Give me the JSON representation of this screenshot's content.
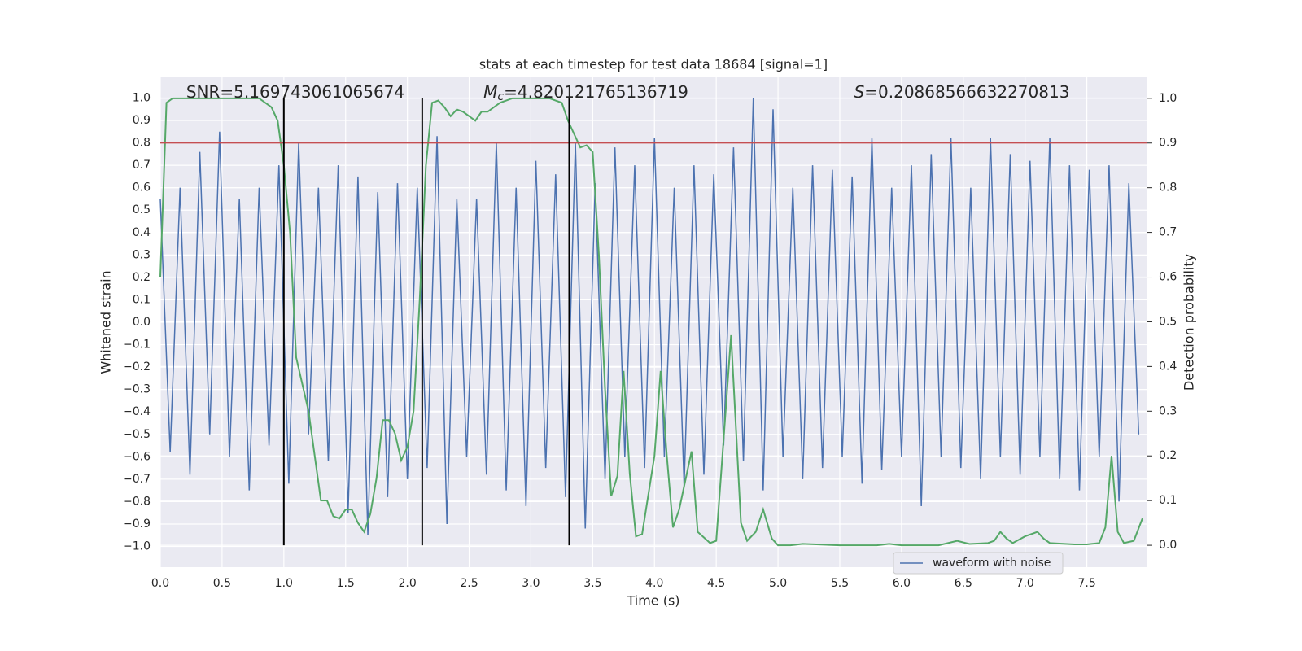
{
  "chart_data": {
    "type": "line",
    "title": "stats at each timestep for test data 18684 [signal=1]",
    "xlabel": "Time (s)",
    "ylabel": "Whitened strain",
    "y2label": "Detection probability",
    "annotations": [
      {
        "text": "SNR=5.169743061065674"
      },
      {
        "symbol": "M",
        "subscript": "c",
        "text": "=4.820121765136719"
      },
      {
        "symbol": "S",
        "text": "=0.20868566632270813"
      }
    ],
    "xlim": [
      0,
      7.99
    ],
    "ylim": [
      -1.0925,
      1.0925
    ],
    "y2lim": [
      -0.049,
      1.047
    ],
    "xticks": [
      {
        "value": 0,
        "label": "0.0"
      },
      {
        "value": 0.5,
        "label": "0.5"
      },
      {
        "value": 1,
        "label": "1.0"
      },
      {
        "value": 1.5,
        "label": "1.5"
      },
      {
        "value": 2,
        "label": "2.0"
      },
      {
        "value": 2.5,
        "label": "2.5"
      },
      {
        "value": 3,
        "label": "3.0"
      },
      {
        "value": 3.5,
        "label": "3.5"
      },
      {
        "value": 4,
        "label": "4.0"
      },
      {
        "value": 4.5,
        "label": "4.5"
      },
      {
        "value": 5,
        "label": "5.0"
      },
      {
        "value": 5.5,
        "label": "5.5"
      },
      {
        "value": 6,
        "label": "6.0"
      },
      {
        "value": 6.5,
        "label": "6.5"
      },
      {
        "value": 7,
        "label": "7.0"
      },
      {
        "value": 7.5,
        "label": "7.5"
      }
    ],
    "yticks": [
      {
        "value": -1,
        "label": "−1.0"
      },
      {
        "value": -0.9,
        "label": "−0.9"
      },
      {
        "value": -0.8,
        "label": "−0.8"
      },
      {
        "value": -0.7,
        "label": "−0.7"
      },
      {
        "value": -0.6,
        "label": "−0.6"
      },
      {
        "value": -0.5,
        "label": "−0.5"
      },
      {
        "value": -0.4,
        "label": "−0.4"
      },
      {
        "value": -0.3,
        "label": "−0.3"
      },
      {
        "value": -0.2,
        "label": "−0.2"
      },
      {
        "value": -0.1,
        "label": "−0.1"
      },
      {
        "value": 0,
        "label": "0.0"
      },
      {
        "value": 0.1,
        "label": "0.1"
      },
      {
        "value": 0.2,
        "label": "0.2"
      },
      {
        "value": 0.3,
        "label": "0.3"
      },
      {
        "value": 0.4,
        "label": "0.4"
      },
      {
        "value": 0.5,
        "label": "0.5"
      },
      {
        "value": 0.6,
        "label": "0.6"
      },
      {
        "value": 0.7,
        "label": "0.7"
      },
      {
        "value": 0.8,
        "label": "0.8"
      },
      {
        "value": 0.9,
        "label": "0.9"
      },
      {
        "value": 1,
        "label": "1.0"
      }
    ],
    "y2ticks": [
      {
        "value": 0,
        "label": "0.0"
      },
      {
        "value": 0.1,
        "label": "0.1"
      },
      {
        "value": 0.2,
        "label": "0.2"
      },
      {
        "value": 0.3,
        "label": "0.3"
      },
      {
        "value": 0.4,
        "label": "0.4"
      },
      {
        "value": 0.5,
        "label": "0.5"
      },
      {
        "value": 0.6,
        "label": "0.6"
      },
      {
        "value": 0.7,
        "label": "0.7"
      },
      {
        "value": 0.8,
        "label": "0.8"
      },
      {
        "value": 0.9,
        "label": "0.9"
      },
      {
        "value": 1,
        "label": "1.0"
      }
    ],
    "grid": true,
    "legend": "lower right",
    "threshold": 0.8,
    "threshold_color": "#c44e52",
    "markers": [
      1.0,
      2.12,
      3.31
    ],
    "marker_color": "#000000",
    "series": [
      {
        "name": "waveform with noise",
        "color": "#4c72b0",
        "x": [
          0,
          0.08,
          0.16,
          0.24,
          0.32,
          0.4,
          0.48,
          0.56,
          0.64,
          0.72,
          0.8,
          0.88,
          0.96,
          1.04,
          1.12,
          1.2,
          1.28,
          1.36,
          1.44,
          1.52,
          1.6,
          1.68,
          1.76,
          1.84,
          1.92,
          2.0,
          2.08,
          2.16,
          2.24,
          2.32,
          2.4,
          2.48,
          2.56,
          2.64,
          2.72,
          2.8,
          2.88,
          2.96,
          3.04,
          3.12,
          3.2,
          3.28,
          3.36,
          3.44,
          3.52,
          3.6,
          3.68,
          3.76,
          3.84,
          3.92,
          4.0,
          4.08,
          4.16,
          4.24,
          4.32,
          4.4,
          4.48,
          4.56,
          4.64,
          4.72,
          4.8,
          4.88,
          4.96,
          5.04,
          5.12,
          5.2,
          5.28,
          5.36,
          5.44,
          5.52,
          5.6,
          5.68,
          5.76,
          5.84,
          5.92,
          6.0,
          6.08,
          6.16,
          6.24,
          6.32,
          6.4,
          6.48,
          6.56,
          6.64,
          6.72,
          6.8,
          6.88,
          6.96,
          7.04,
          7.12,
          7.2,
          7.28,
          7.36,
          7.44,
          7.52,
          7.6,
          7.68,
          7.76,
          7.84,
          7.92
        ],
        "values": [
          0.55,
          -0.58,
          0.6,
          -0.68,
          0.76,
          -0.5,
          0.85,
          -0.6,
          0.55,
          -0.75,
          0.6,
          -0.55,
          0.7,
          -0.72,
          0.8,
          -0.5,
          0.6,
          -0.62,
          0.7,
          -0.85,
          0.65,
          -0.95,
          0.58,
          -0.78,
          0.62,
          -0.7,
          0.6,
          -0.65,
          0.83,
          -0.9,
          0.55,
          -0.6,
          0.55,
          -0.68,
          0.8,
          -0.75,
          0.6,
          -0.82,
          0.72,
          -0.65,
          0.66,
          -0.78,
          0.8,
          -0.92,
          0.62,
          -0.7,
          0.78,
          -0.6,
          0.7,
          -0.65,
          0.82,
          -0.6,
          0.6,
          -0.73,
          0.7,
          -0.68,
          0.66,
          -0.55,
          0.78,
          -0.62,
          1.0,
          -0.75,
          0.95,
          -0.6,
          0.6,
          -0.7,
          0.7,
          -0.65,
          0.68,
          -0.6,
          0.65,
          -0.72,
          0.82,
          -0.66,
          0.6,
          -0.6,
          0.7,
          -0.82,
          0.75,
          -0.6,
          0.82,
          -0.65,
          0.6,
          -0.7,
          0.82,
          -0.6,
          0.75,
          -0.68,
          0.72,
          -0.6,
          0.82,
          -0.7,
          0.7,
          -0.75,
          0.68,
          -0.6,
          0.7,
          -0.8,
          0.62,
          -0.5
        ]
      },
      {
        "color": "#55a868",
        "axis": "y2",
        "x": [
          0,
          0.05,
          0.1,
          0.2,
          0.8,
          0.9,
          0.95,
          1.0,
          1.05,
          1.1,
          1.2,
          1.25,
          1.3,
          1.35,
          1.4,
          1.45,
          1.5,
          1.55,
          1.6,
          1.65,
          1.7,
          1.75,
          1.8,
          1.85,
          1.9,
          1.95,
          2.0,
          2.05,
          2.1,
          2.15,
          2.2,
          2.25,
          2.3,
          2.35,
          2.4,
          2.45,
          2.5,
          2.55,
          2.6,
          2.65,
          2.75,
          2.85,
          3.0,
          3.15,
          3.25,
          3.3,
          3.4,
          3.45,
          3.5,
          3.55,
          3.6,
          3.65,
          3.7,
          3.75,
          3.8,
          3.85,
          3.9,
          4.0,
          4.05,
          4.1,
          4.15,
          4.2,
          4.3,
          4.35,
          4.45,
          4.5,
          4.55,
          4.62,
          4.7,
          4.75,
          4.82,
          4.88,
          4.95,
          5.0,
          5.1,
          5.2,
          5.5,
          5.8,
          5.9,
          6.0,
          6.3,
          6.45,
          6.55,
          6.7,
          6.75,
          6.8,
          6.85,
          6.9,
          7.0,
          7.05,
          7.1,
          7.15,
          7.2,
          7.4,
          7.5,
          7.6,
          7.65,
          7.7,
          7.75,
          7.8,
          7.88,
          7.95
        ],
        "values": [
          0.6,
          0.99,
          1.0,
          1.0,
          1.0,
          0.98,
          0.95,
          0.85,
          0.7,
          0.42,
          0.3,
          0.2,
          0.1,
          0.1,
          0.065,
          0.06,
          0.08,
          0.08,
          0.05,
          0.03,
          0.07,
          0.15,
          0.28,
          0.28,
          0.25,
          0.19,
          0.22,
          0.3,
          0.55,
          0.85,
          0.99,
          0.995,
          0.98,
          0.96,
          0.975,
          0.97,
          0.96,
          0.95,
          0.97,
          0.97,
          0.99,
          1.0,
          1.0,
          1.0,
          0.99,
          0.95,
          0.89,
          0.895,
          0.88,
          0.65,
          0.35,
          0.11,
          0.155,
          0.39,
          0.16,
          0.02,
          0.025,
          0.2,
          0.39,
          0.2,
          0.04,
          0.08,
          0.21,
          0.03,
          0.005,
          0.01,
          0.2,
          0.47,
          0.05,
          0.01,
          0.03,
          0.08,
          0.015,
          0.0,
          0.0,
          0.003,
          0.0,
          0.0,
          0.003,
          0.0,
          0.0,
          0.01,
          0.003,
          0.005,
          0.01,
          0.03,
          0.015,
          0.005,
          0.02,
          0.025,
          0.03,
          0.015,
          0.005,
          0.002,
          0.002,
          0.005,
          0.04,
          0.2,
          0.03,
          0.005,
          0.01,
          0.06
        ]
      }
    ]
  }
}
